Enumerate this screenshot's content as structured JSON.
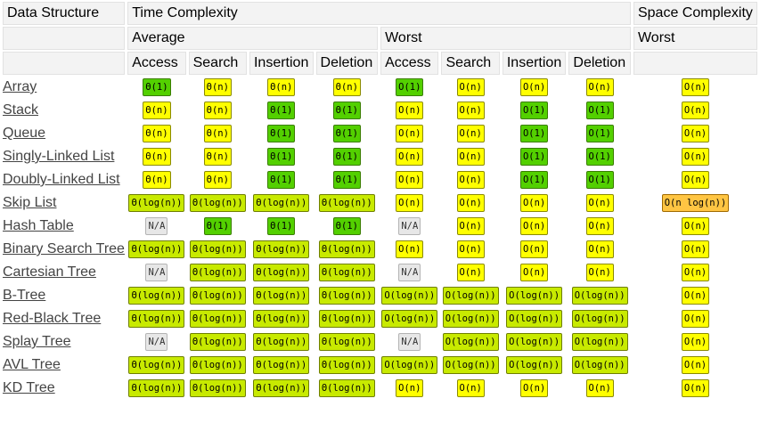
{
  "header": {
    "data_structure": "Data Structure",
    "time_complexity": "Time Complexity",
    "space_complexity": "Space Complexity",
    "average": "Average",
    "worst": "Worst",
    "space_worst": "Worst",
    "ops": [
      "Access",
      "Search",
      "Insertion",
      "Deletion",
      "Access",
      "Search",
      "Insertion",
      "Deletion"
    ]
  },
  "colors": {
    "green": "#53d000",
    "yellowgreen": "#c8ea00",
    "yellow": "#ffff00",
    "orange": "#ffc543",
    "gray": "#e7e7e7"
  },
  "rows": [
    {
      "name": "Array",
      "cells": [
        {
          "v": "Θ(1)",
          "c": "green"
        },
        {
          "v": "Θ(n)",
          "c": "yellow"
        },
        {
          "v": "Θ(n)",
          "c": "yellow"
        },
        {
          "v": "Θ(n)",
          "c": "yellow"
        },
        {
          "v": "O(1)",
          "c": "green"
        },
        {
          "v": "O(n)",
          "c": "yellow"
        },
        {
          "v": "O(n)",
          "c": "yellow"
        },
        {
          "v": "O(n)",
          "c": "yellow"
        },
        {
          "v": "O(n)",
          "c": "yellow"
        }
      ]
    },
    {
      "name": "Stack",
      "cells": [
        {
          "v": "Θ(n)",
          "c": "yellow"
        },
        {
          "v": "Θ(n)",
          "c": "yellow"
        },
        {
          "v": "Θ(1)",
          "c": "green"
        },
        {
          "v": "Θ(1)",
          "c": "green"
        },
        {
          "v": "O(n)",
          "c": "yellow"
        },
        {
          "v": "O(n)",
          "c": "yellow"
        },
        {
          "v": "O(1)",
          "c": "green"
        },
        {
          "v": "O(1)",
          "c": "green"
        },
        {
          "v": "O(n)",
          "c": "yellow"
        }
      ]
    },
    {
      "name": "Queue",
      "cells": [
        {
          "v": "Θ(n)",
          "c": "yellow"
        },
        {
          "v": "Θ(n)",
          "c": "yellow"
        },
        {
          "v": "Θ(1)",
          "c": "green"
        },
        {
          "v": "Θ(1)",
          "c": "green"
        },
        {
          "v": "O(n)",
          "c": "yellow"
        },
        {
          "v": "O(n)",
          "c": "yellow"
        },
        {
          "v": "O(1)",
          "c": "green"
        },
        {
          "v": "O(1)",
          "c": "green"
        },
        {
          "v": "O(n)",
          "c": "yellow"
        }
      ]
    },
    {
      "name": "Singly-Linked List",
      "cells": [
        {
          "v": "Θ(n)",
          "c": "yellow"
        },
        {
          "v": "Θ(n)",
          "c": "yellow"
        },
        {
          "v": "Θ(1)",
          "c": "green"
        },
        {
          "v": "Θ(1)",
          "c": "green"
        },
        {
          "v": "O(n)",
          "c": "yellow"
        },
        {
          "v": "O(n)",
          "c": "yellow"
        },
        {
          "v": "O(1)",
          "c": "green"
        },
        {
          "v": "O(1)",
          "c": "green"
        },
        {
          "v": "O(n)",
          "c": "yellow"
        }
      ]
    },
    {
      "name": "Doubly-Linked List",
      "cells": [
        {
          "v": "Θ(n)",
          "c": "yellow"
        },
        {
          "v": "Θ(n)",
          "c": "yellow"
        },
        {
          "v": "Θ(1)",
          "c": "green"
        },
        {
          "v": "Θ(1)",
          "c": "green"
        },
        {
          "v": "O(n)",
          "c": "yellow"
        },
        {
          "v": "O(n)",
          "c": "yellow"
        },
        {
          "v": "O(1)",
          "c": "green"
        },
        {
          "v": "O(1)",
          "c": "green"
        },
        {
          "v": "O(n)",
          "c": "yellow"
        }
      ]
    },
    {
      "name": "Skip List",
      "cells": [
        {
          "v": "Θ(log(n))",
          "c": "yellowgreen"
        },
        {
          "v": "Θ(log(n))",
          "c": "yellowgreen"
        },
        {
          "v": "Θ(log(n))",
          "c": "yellowgreen"
        },
        {
          "v": "Θ(log(n))",
          "c": "yellowgreen"
        },
        {
          "v": "O(n)",
          "c": "yellow"
        },
        {
          "v": "O(n)",
          "c": "yellow"
        },
        {
          "v": "O(n)",
          "c": "yellow"
        },
        {
          "v": "O(n)",
          "c": "yellow"
        },
        {
          "v": "O(n log(n))",
          "c": "orange"
        }
      ]
    },
    {
      "name": "Hash Table",
      "cells": [
        {
          "v": "N/A",
          "c": "gray"
        },
        {
          "v": "Θ(1)",
          "c": "green"
        },
        {
          "v": "Θ(1)",
          "c": "green"
        },
        {
          "v": "Θ(1)",
          "c": "green"
        },
        {
          "v": "N/A",
          "c": "gray"
        },
        {
          "v": "O(n)",
          "c": "yellow"
        },
        {
          "v": "O(n)",
          "c": "yellow"
        },
        {
          "v": "O(n)",
          "c": "yellow"
        },
        {
          "v": "O(n)",
          "c": "yellow"
        }
      ]
    },
    {
      "name": "Binary Search Tree",
      "cells": [
        {
          "v": "Θ(log(n))",
          "c": "yellowgreen"
        },
        {
          "v": "Θ(log(n))",
          "c": "yellowgreen"
        },
        {
          "v": "Θ(log(n))",
          "c": "yellowgreen"
        },
        {
          "v": "Θ(log(n))",
          "c": "yellowgreen"
        },
        {
          "v": "O(n)",
          "c": "yellow"
        },
        {
          "v": "O(n)",
          "c": "yellow"
        },
        {
          "v": "O(n)",
          "c": "yellow"
        },
        {
          "v": "O(n)",
          "c": "yellow"
        },
        {
          "v": "O(n)",
          "c": "yellow"
        }
      ]
    },
    {
      "name": "Cartesian Tree",
      "cells": [
        {
          "v": "N/A",
          "c": "gray"
        },
        {
          "v": "Θ(log(n))",
          "c": "yellowgreen"
        },
        {
          "v": "Θ(log(n))",
          "c": "yellowgreen"
        },
        {
          "v": "Θ(log(n))",
          "c": "yellowgreen"
        },
        {
          "v": "N/A",
          "c": "gray"
        },
        {
          "v": "O(n)",
          "c": "yellow"
        },
        {
          "v": "O(n)",
          "c": "yellow"
        },
        {
          "v": "O(n)",
          "c": "yellow"
        },
        {
          "v": "O(n)",
          "c": "yellow"
        }
      ]
    },
    {
      "name": "B-Tree",
      "cells": [
        {
          "v": "Θ(log(n))",
          "c": "yellowgreen"
        },
        {
          "v": "Θ(log(n))",
          "c": "yellowgreen"
        },
        {
          "v": "Θ(log(n))",
          "c": "yellowgreen"
        },
        {
          "v": "Θ(log(n))",
          "c": "yellowgreen"
        },
        {
          "v": "O(log(n))",
          "c": "yellowgreen"
        },
        {
          "v": "O(log(n))",
          "c": "yellowgreen"
        },
        {
          "v": "O(log(n))",
          "c": "yellowgreen"
        },
        {
          "v": "O(log(n))",
          "c": "yellowgreen"
        },
        {
          "v": "O(n)",
          "c": "yellow"
        }
      ]
    },
    {
      "name": "Red-Black Tree",
      "cells": [
        {
          "v": "Θ(log(n))",
          "c": "yellowgreen"
        },
        {
          "v": "Θ(log(n))",
          "c": "yellowgreen"
        },
        {
          "v": "Θ(log(n))",
          "c": "yellowgreen"
        },
        {
          "v": "Θ(log(n))",
          "c": "yellowgreen"
        },
        {
          "v": "O(log(n))",
          "c": "yellowgreen"
        },
        {
          "v": "O(log(n))",
          "c": "yellowgreen"
        },
        {
          "v": "O(log(n))",
          "c": "yellowgreen"
        },
        {
          "v": "O(log(n))",
          "c": "yellowgreen"
        },
        {
          "v": "O(n)",
          "c": "yellow"
        }
      ]
    },
    {
      "name": "Splay Tree",
      "cells": [
        {
          "v": "N/A",
          "c": "gray"
        },
        {
          "v": "Θ(log(n))",
          "c": "yellowgreen"
        },
        {
          "v": "Θ(log(n))",
          "c": "yellowgreen"
        },
        {
          "v": "Θ(log(n))",
          "c": "yellowgreen"
        },
        {
          "v": "N/A",
          "c": "gray"
        },
        {
          "v": "O(log(n))",
          "c": "yellowgreen"
        },
        {
          "v": "O(log(n))",
          "c": "yellowgreen"
        },
        {
          "v": "O(log(n))",
          "c": "yellowgreen"
        },
        {
          "v": "O(n)",
          "c": "yellow"
        }
      ]
    },
    {
      "name": "AVL Tree",
      "cells": [
        {
          "v": "Θ(log(n))",
          "c": "yellowgreen"
        },
        {
          "v": "Θ(log(n))",
          "c": "yellowgreen"
        },
        {
          "v": "Θ(log(n))",
          "c": "yellowgreen"
        },
        {
          "v": "Θ(log(n))",
          "c": "yellowgreen"
        },
        {
          "v": "O(log(n))",
          "c": "yellowgreen"
        },
        {
          "v": "O(log(n))",
          "c": "yellowgreen"
        },
        {
          "v": "O(log(n))",
          "c": "yellowgreen"
        },
        {
          "v": "O(log(n))",
          "c": "yellowgreen"
        },
        {
          "v": "O(n)",
          "c": "yellow"
        }
      ]
    },
    {
      "name": "KD Tree",
      "cells": [
        {
          "v": "Θ(log(n))",
          "c": "yellowgreen"
        },
        {
          "v": "Θ(log(n))",
          "c": "yellowgreen"
        },
        {
          "v": "Θ(log(n))",
          "c": "yellowgreen"
        },
        {
          "v": "Θ(log(n))",
          "c": "yellowgreen"
        },
        {
          "v": "O(n)",
          "c": "yellow"
        },
        {
          "v": "O(n)",
          "c": "yellow"
        },
        {
          "v": "O(n)",
          "c": "yellow"
        },
        {
          "v": "O(n)",
          "c": "yellow"
        },
        {
          "v": "O(n)",
          "c": "yellow"
        }
      ]
    }
  ]
}
